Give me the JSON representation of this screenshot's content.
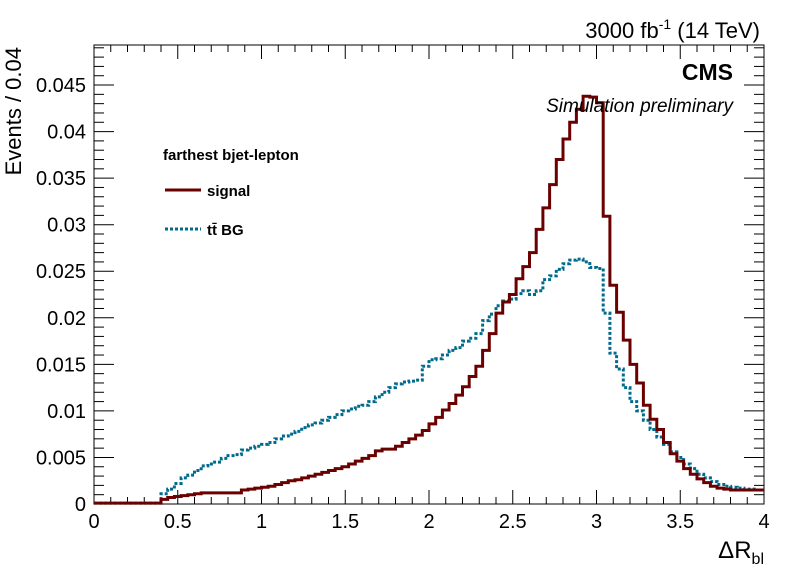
{
  "chart_data": {
    "type": "line",
    "header": {
      "lumi": "3000 fb",
      "lumi_sup": "-1",
      "energy": " (14 TeV)"
    },
    "experiment": "CMS",
    "status": "Simulation preliminary",
    "legend_title": "farthest bjet-lepton",
    "legend_placement": "upper-left",
    "xlabel": {
      "main": "ΔR",
      "sub": "bl"
    },
    "ylabel": "Events / 0.04",
    "xlim": [
      0,
      4
    ],
    "ylim": [
      0,
      0.0493
    ],
    "xticks": [
      0,
      0.5,
      1,
      1.5,
      2,
      2.5,
      3,
      3.5,
      4
    ],
    "xtick_labels": [
      "0",
      "0.5",
      "1",
      "1.5",
      "2",
      "2.5",
      "3",
      "3.5",
      "4"
    ],
    "yticks": [
      0,
      0.005,
      0.01,
      0.015,
      0.02,
      0.025,
      0.03,
      0.035,
      0.04,
      0.045
    ],
    "ytick_labels": [
      "0",
      "0.005",
      "0.01",
      "0.015",
      "0.02",
      "0.025",
      "0.03",
      "0.035",
      "0.04",
      "0.045"
    ],
    "bin_width": 0.04,
    "grid": false,
    "series": [
      {
        "name": "signal",
        "color": "#6b0000",
        "style": "solid",
        "bin_edges_start": 0.0,
        "values": [
          0.0001,
          0.0001,
          0.0001,
          0.0001,
          0.0001,
          0.0001,
          0.0001,
          0.0001,
          0.0001,
          0.0001,
          0.0005,
          0.0007,
          0.0008,
          0.0009,
          0.001,
          0.0011,
          0.0012,
          0.0012,
          0.0012,
          0.0012,
          0.0012,
          0.0012,
          0.0015,
          0.0016,
          0.0017,
          0.0018,
          0.0019,
          0.0021,
          0.0023,
          0.0025,
          0.0026,
          0.0028,
          0.003,
          0.0032,
          0.0034,
          0.0036,
          0.0038,
          0.004,
          0.0043,
          0.0046,
          0.0049,
          0.0052,
          0.0057,
          0.0059,
          0.0059,
          0.0062,
          0.0066,
          0.007,
          0.0074,
          0.0079,
          0.0086,
          0.0093,
          0.0101,
          0.0108,
          0.0117,
          0.0126,
          0.0137,
          0.0148,
          0.0165,
          0.0183,
          0.0205,
          0.0217,
          0.0225,
          0.0242,
          0.0255,
          0.027,
          0.0295,
          0.0318,
          0.0343,
          0.037,
          0.0392,
          0.041,
          0.0424,
          0.0438,
          0.0437,
          0.0431,
          0.0309,
          0.0235,
          0.0206,
          0.0176,
          0.015,
          0.013,
          0.0106,
          0.0091,
          0.008,
          0.0066,
          0.0054,
          0.0046,
          0.0038,
          0.0032,
          0.0027,
          0.0023,
          0.0019,
          0.0017,
          0.0016,
          0.0015,
          0.0015,
          0.0015,
          0.0015,
          0.0015
        ]
      },
      {
        "name": "tt̄ BG",
        "color": "#006b8c",
        "style": "dotted",
        "bin_edges_start": 0.0,
        "values": [
          0.0001,
          0.0001,
          0.0001,
          0.0001,
          0.0001,
          0.0001,
          0.0001,
          0.0001,
          0.0001,
          0.0001,
          0.0011,
          0.0016,
          0.0022,
          0.0028,
          0.0031,
          0.0036,
          0.0041,
          0.0043,
          0.0045,
          0.0049,
          0.0052,
          0.0053,
          0.0058,
          0.006,
          0.0062,
          0.0064,
          0.0066,
          0.007,
          0.0073,
          0.0075,
          0.0078,
          0.0082,
          0.0085,
          0.0087,
          0.009,
          0.0093,
          0.0096,
          0.01,
          0.0102,
          0.0105,
          0.0106,
          0.011,
          0.0115,
          0.012,
          0.0125,
          0.0129,
          0.0131,
          0.0132,
          0.0133,
          0.0148,
          0.0155,
          0.0156,
          0.016,
          0.0165,
          0.0168,
          0.0175,
          0.0178,
          0.0183,
          0.0197,
          0.0204,
          0.0213,
          0.0218,
          0.022,
          0.0226,
          0.0229,
          0.0225,
          0.0229,
          0.0241,
          0.0245,
          0.0252,
          0.0258,
          0.0262,
          0.0263,
          0.026,
          0.0254,
          0.0253,
          0.0205,
          0.0162,
          0.0145,
          0.0125,
          0.011,
          0.01,
          0.009,
          0.008,
          0.0072,
          0.0064,
          0.0056,
          0.005,
          0.0043,
          0.0038,
          0.0032,
          0.0028,
          0.0024,
          0.0021,
          0.0019,
          0.0018,
          0.0017,
          0.0016,
          0.0016,
          0.0015
        ]
      }
    ]
  }
}
